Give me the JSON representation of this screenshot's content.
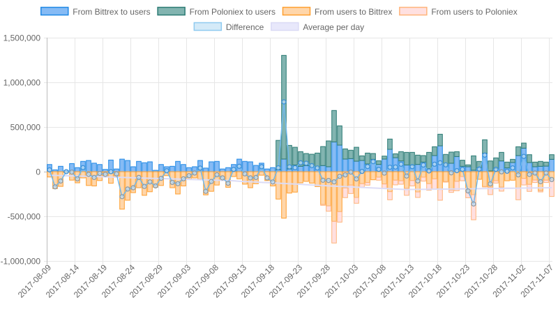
{
  "chart_data": {
    "type": "bar",
    "stacked": true,
    "value_scale": 1000,
    "value_scale_note": "series values listed in thousands",
    "x_start_date": "2017-08-09",
    "num_days": 91,
    "x_tick_labels": [
      "2017-08-09",
      "2017-08-14",
      "2017-08-19",
      "2017-08-24",
      "2017-08-29",
      "2017-09-03",
      "2017-09-08",
      "2017-09-13",
      "2017-09-18",
      "2017-09-23",
      "2017-09-28",
      "2017-10-03",
      "2017-10-08",
      "2017-10-13",
      "2017-10-18",
      "2017-10-23",
      "2017-10-28",
      "2017-11-02",
      "2017-11-07"
    ],
    "y_tick_labels": [
      "1,500,000",
      "1,000,000",
      "500,000",
      "0",
      "-500,000",
      "-1,000,000"
    ],
    "ylim": [
      -1000000,
      1500000
    ],
    "grid": true,
    "legend_position": "top",
    "legend": [
      {
        "label": "From Bittrex to users",
        "fill": "#86bbf5",
        "stroke": "#1e88e5"
      },
      {
        "label": "From Poloniex to users",
        "fill": "#82b4b0",
        "stroke": "#2a7a73"
      },
      {
        "label": "From users to Bittrex",
        "fill": "#ffd6aa",
        "stroke": "#ff9f2e"
      },
      {
        "label": "From users to Poloniex",
        "fill": "#ffe0e0",
        "stroke": "#ffb47a"
      },
      {
        "label": "Difference",
        "fill": "#d4eaf8",
        "stroke": "#8fcaf0"
      },
      {
        "label": "Average per day",
        "fill": "#e8e8fb",
        "stroke": "#dadaf5"
      }
    ],
    "series": [
      {
        "name": "From Bittrex to users",
        "values": [
          80,
          20,
          60,
          10,
          90,
          45,
          115,
          125,
          95,
          80,
          25,
          130,
          30,
          140,
          125,
          55,
          115,
          100,
          110,
          15,
          80,
          55,
          60,
          115,
          80,
          45,
          55,
          125,
          40,
          110,
          115,
          30,
          45,
          80,
          140,
          115,
          110,
          70,
          95,
          30,
          45,
          20,
          141,
          30,
          75,
          60,
          68,
          62,
          42,
          68,
          55,
          333,
          297,
          141,
          146,
          117,
          125,
          86,
          138,
          81,
          141,
          250,
          156,
          120,
          75,
          70,
          81,
          107,
          34,
          180,
          289,
          73,
          94,
          169,
          60,
          55,
          16,
          42,
          206,
          8,
          34,
          120,
          42,
          102,
          180,
          263,
          102,
          55,
          60,
          62,
          138
        ]
      },
      {
        "name": "From Poloniex to users",
        "values": [
          0,
          0,
          0,
          0,
          0,
          0,
          0,
          0,
          0,
          0,
          0,
          0,
          0,
          0,
          0,
          0,
          0,
          0,
          0,
          0,
          0,
          0,
          0,
          0,
          0,
          0,
          0,
          0,
          0,
          0,
          0,
          0,
          0,
          0,
          0,
          0,
          0,
          0,
          0,
          0,
          0,
          330,
          1161,
          264,
          198,
          164,
          135,
          133,
          166,
          213,
          289,
          352,
          216,
          114,
          94,
          156,
          52,
          122,
          65,
          41,
          33,
          115,
          44,
          104,
          141,
          146,
          104,
          73,
          182,
          99,
          130,
          120,
          125,
          55,
          68,
          21,
          161,
          73,
          151,
          112,
          120,
          96,
          65,
          36,
          99,
          57,
          88,
          52,
          55,
          45,
          52
        ]
      },
      {
        "name": "From users to Bittrex",
        "values": [
          -60,
          -190,
          -165,
          -10,
          -95,
          -125,
          -70,
          -155,
          -160,
          -100,
          -55,
          -130,
          -55,
          -420,
          -320,
          -235,
          -180,
          -265,
          -225,
          -175,
          -155,
          -45,
          -180,
          -250,
          -160,
          -90,
          -70,
          -85,
          -260,
          -220,
          -150,
          -100,
          -175,
          -55,
          -80,
          -140,
          -180,
          -135,
          -40,
          -100,
          -160,
          -307,
          -521,
          -240,
          -229,
          -125,
          -109,
          -128,
          -167,
          -367,
          -383,
          -557,
          -448,
          -182,
          -151,
          -289,
          -135,
          -122,
          -91,
          -62,
          -138,
          -224,
          -96,
          -102,
          -187,
          -100,
          -227,
          -62,
          -135,
          -81,
          -200,
          -112,
          -206,
          -109,
          -55,
          -219,
          -258,
          -86,
          -167,
          -174,
          -102,
          -174,
          -102,
          -96,
          -185,
          -76,
          -143,
          -94,
          -214,
          -96,
          -88
        ]
      },
      {
        "name": "From users to Poloniex",
        "values": [
          0,
          0,
          0,
          0,
          0,
          0,
          0,
          0,
          0,
          0,
          0,
          0,
          0,
          0,
          0,
          0,
          0,
          0,
          0,
          0,
          0,
          0,
          0,
          0,
          0,
          0,
          0,
          0,
          0,
          0,
          0,
          0,
          0,
          0,
          0,
          0,
          0,
          0,
          0,
          0,
          0,
          0,
          0,
          0,
          0,
          0,
          0,
          0,
          0,
          -10,
          -60,
          -242,
          -117,
          -109,
          -94,
          -65,
          -39,
          -29,
          0,
          -34,
          -52,
          -91,
          -52,
          -39,
          -78,
          -60,
          -62,
          -44,
          -73,
          -115,
          -120,
          -5,
          -26,
          -104,
          -47,
          -73,
          -281,
          0,
          -5,
          -83,
          -26,
          -44,
          0,
          0,
          -130,
          -73,
          -78,
          -28,
          -13,
          -26,
          -190
        ]
      },
      {
        "name": "Difference",
        "type": "line",
        "values": [
          20,
          -170,
          -105,
          0,
          -5,
          -80,
          45,
          -30,
          -65,
          -20,
          -30,
          0,
          -25,
          -280,
          -195,
          -180,
          -65,
          -165,
          -115,
          -160,
          -75,
          10,
          -120,
          -135,
          -80,
          -45,
          -15,
          40,
          -220,
          -110,
          -35,
          -70,
          -130,
          25,
          60,
          -25,
          -70,
          -65,
          55,
          -70,
          -115,
          43,
          781,
          54,
          44,
          99,
          94,
          67,
          41,
          -96,
          -99,
          -114,
          -52,
          -36,
          -5,
          -81,
          3,
          57,
          112,
          26,
          -16,
          50,
          52,
          83,
          -49,
          56,
          -104,
          74,
          8,
          83,
          99,
          76,
          -13,
          11,
          26,
          -216,
          -362,
          29,
          185,
          -137,
          26,
          -2,
          5,
          42,
          -36,
          171,
          -31,
          -15,
          -112,
          -15,
          -88
        ]
      },
      {
        "name": "Average per day",
        "type": "line",
        "values": [
          -40,
          -42,
          -44,
          -46,
          -48,
          -49,
          -51,
          -53,
          -55,
          -57,
          -59,
          -61,
          -62,
          -64,
          -66,
          -68,
          -70,
          -72,
          -74,
          -76,
          -77,
          -79,
          -81,
          -83,
          -85,
          -87,
          -89,
          -91,
          -92,
          -94,
          -96,
          -98,
          -100,
          -103,
          -107,
          -110,
          -113,
          -116,
          -120,
          -123,
          -126,
          -129,
          -133,
          -136,
          -139,
          -142,
          -146,
          -149,
          -152,
          -155,
          -159,
          -162,
          -165,
          -168,
          -171,
          -174,
          -177,
          -180,
          -183,
          -186,
          -188,
          -191,
          -194,
          -197,
          -200,
          -199,
          -198,
          -198,
          -197,
          -196,
          -195,
          -195,
          -194,
          -193,
          -192,
          -192,
          -191,
          -190,
          -189,
          -189,
          -188,
          -187,
          -186,
          -186,
          -185,
          -184,
          -183,
          -183,
          -182,
          -181,
          -180
        ]
      }
    ]
  }
}
